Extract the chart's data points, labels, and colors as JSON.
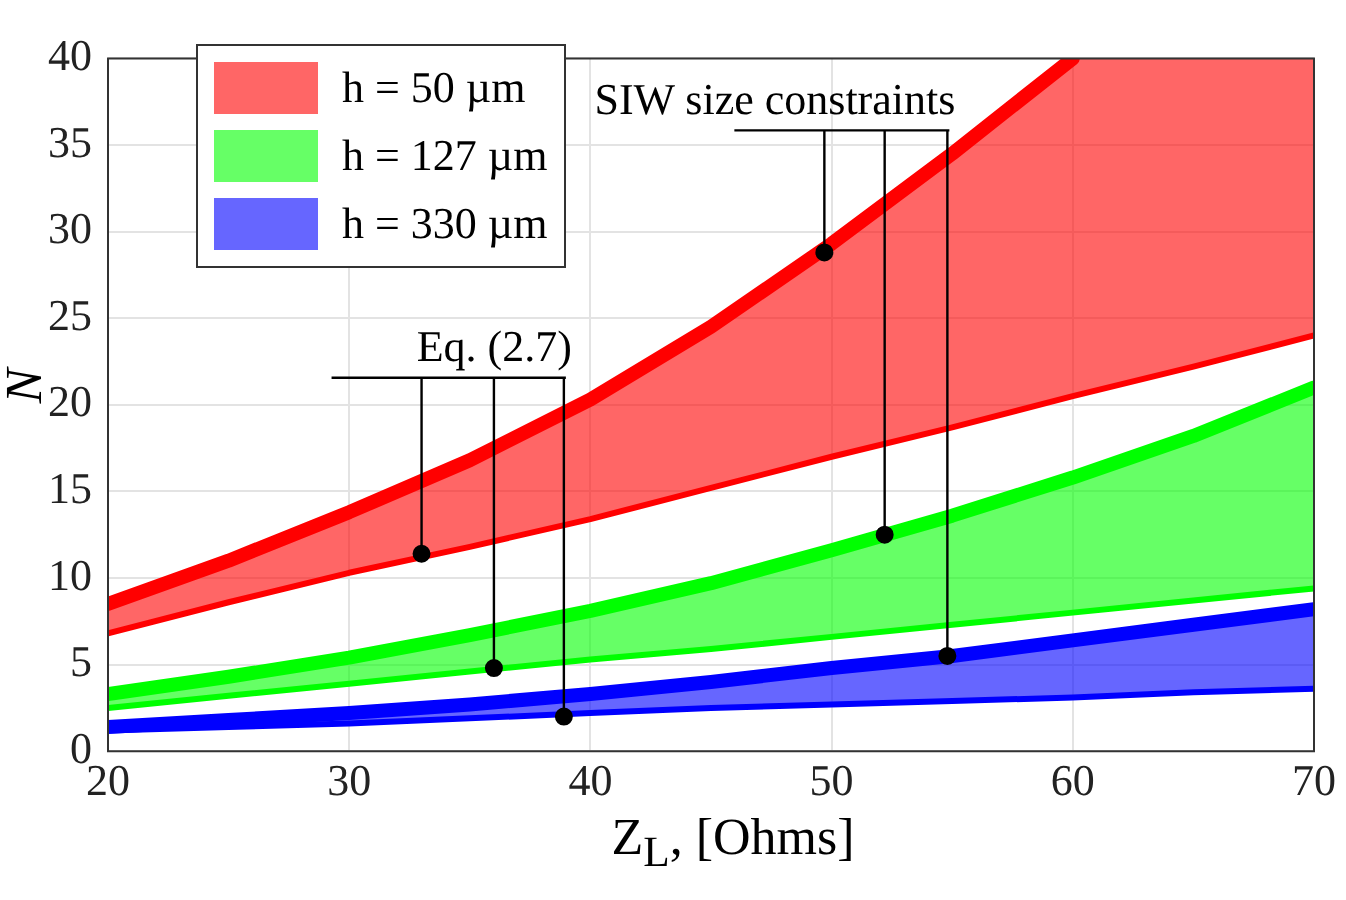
{
  "chart_data": {
    "type": "line",
    "xlabel": "Z$_{L}$, [Ohms]",
    "ylabel": "N",
    "xlim": [
      20,
      70
    ],
    "ylim": [
      0,
      40
    ],
    "xticks": [
      20,
      30,
      40,
      50,
      60,
      70
    ],
    "yticks": [
      0,
      5,
      10,
      15,
      20,
      25,
      30,
      35,
      40
    ],
    "grid": true,
    "legend": "top left",
    "x": [
      20,
      25,
      30,
      35,
      40,
      45,
      50,
      55,
      60,
      65,
      70
    ],
    "series": [
      {
        "name": "h = 50 µm",
        "color": "#ff0000",
        "values": [
          8.5,
          11,
          13.8,
          16.8,
          20.3,
          24.5,
          29.3,
          34.5,
          40,
          null,
          null
        ],
        "lower": [
          6.8,
          8.6,
          10.3,
          11.8,
          13.4,
          15.2,
          17,
          18.7,
          20.5,
          22.2,
          24
        ],
        "upper": [
          8.5,
          11,
          13.8,
          16.8,
          20.3,
          24.5,
          29.3,
          34.5,
          40,
          40,
          40
        ]
      },
      {
        "color": "#ff0000",
        "values": [
          6.8,
          8.6,
          10.3,
          11.8,
          13.4,
          15.2,
          17,
          18.7,
          20.5,
          22.2,
          24
        ]
      },
      {
        "name": "h = 127 µm",
        "color": "#00ff00",
        "values": [
          3.3,
          4.3,
          5.4,
          6.7,
          8.1,
          9.7,
          11.6,
          13.6,
          15.8,
          18.2,
          21
        ],
        "lower": [
          2.5,
          3.2,
          3.9,
          4.6,
          5.3,
          5.9,
          6.6,
          7.3,
          8,
          8.7,
          9.4
        ],
        "upper": [
          3.3,
          4.3,
          5.4,
          6.7,
          8.1,
          9.7,
          11.6,
          13.6,
          15.8,
          18.2,
          21
        ]
      },
      {
        "color": "#00ff00",
        "values": [
          2.5,
          3.2,
          3.9,
          4.6,
          5.3,
          5.9,
          6.6,
          7.3,
          8,
          8.7,
          9.4
        ]
      },
      {
        "name": "h = 330 µm",
        "color": "#0000ff",
        "values": [
          1.4,
          1.8,
          2.2,
          2.7,
          3.3,
          4,
          4.8,
          5.5,
          6.4,
          7.3,
          8.2
        ],
        "lower": [
          1.2,
          1.4,
          1.6,
          1.9,
          2.2,
          2.5,
          2.7,
          2.9,
          3.1,
          3.4,
          3.6
        ],
        "upper": [
          1.4,
          1.8,
          2.2,
          2.7,
          3.3,
          4,
          4.8,
          5.5,
          6.4,
          7.3,
          8.2
        ]
      },
      {
        "color": "#0000ff",
        "values": [
          1.2,
          1.4,
          1.6,
          1.9,
          2.2,
          2.5,
          2.7,
          2.9,
          3.1,
          3.4,
          3.6
        ]
      },
      {
        "type": "scatter",
        "color": "#000000",
        "marker": "circle",
        "x": [
          33,
          36,
          38.9,
          49.7,
          52.2,
          54.8
        ],
        "values": [
          11.4,
          4.8,
          2,
          28.8,
          12.5,
          5.5
        ]
      }
    ],
    "annotations": [
      {
        "text": "Eq. (2.7)",
        "x": 33,
        "y": 11.4
      },
      {
        "text": "SIW size constraints",
        "x": 49.7,
        "y": 28.8
      }
    ]
  }
}
